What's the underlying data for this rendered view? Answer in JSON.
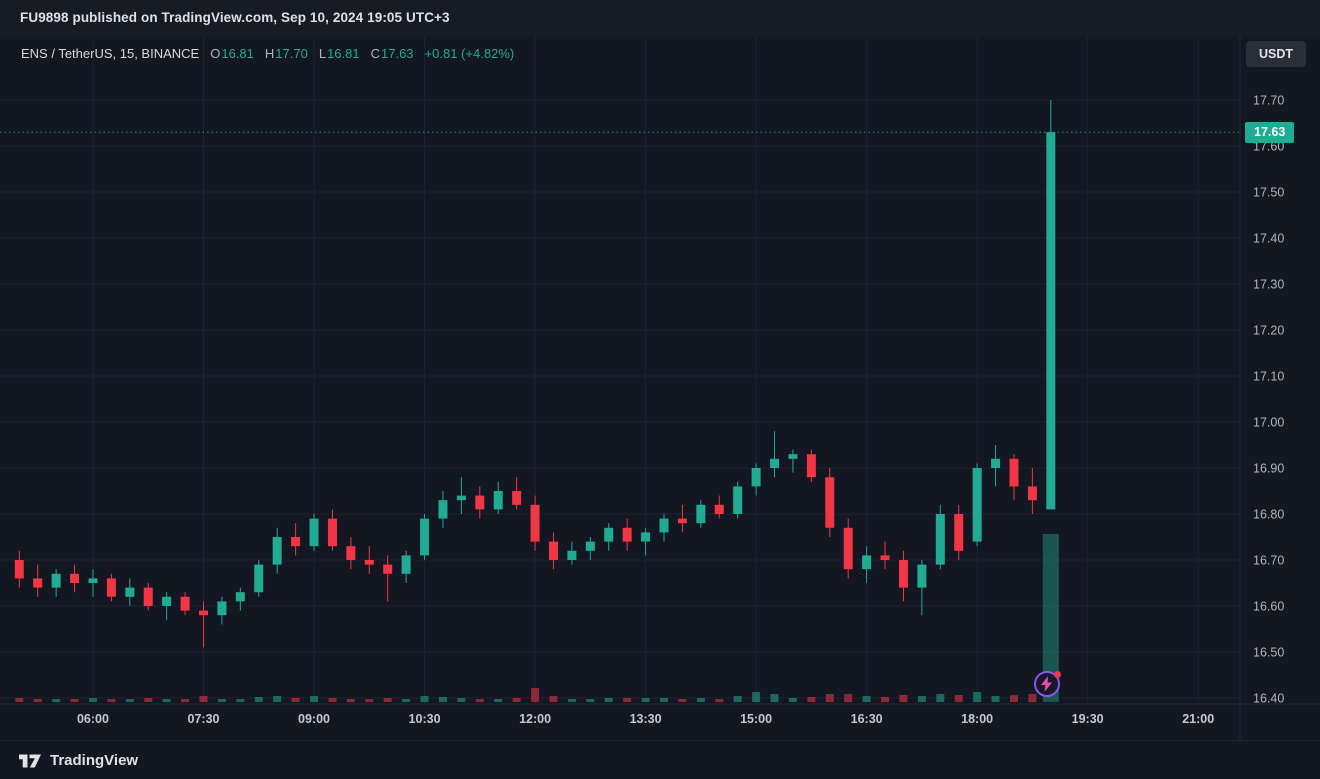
{
  "header": {
    "attribution": "FU9898 published on TradingView.com, Sep 10, 2024 19:05 UTC+3"
  },
  "toolbar": {
    "currency_label": "USDT"
  },
  "legend": {
    "symbol": "ENS / TetherUS, 15, BINANCE",
    "ohlc": [
      {
        "k": "O",
        "v": "16.81"
      },
      {
        "k": "H",
        "v": "17.70"
      },
      {
        "k": "L",
        "v": "16.81"
      },
      {
        "k": "C",
        "v": "17.63"
      }
    ],
    "change": "+0.81 (+4.82%)"
  },
  "price_label": {
    "value": "17.63"
  },
  "footer": {
    "brand": "TradingView"
  },
  "colors": {
    "up": "#22ab94",
    "down": "#f23645",
    "bg": "#131722",
    "grid": "#1d2230",
    "axis_text": "#b2b5be",
    "time_text": "#c6c9d1",
    "separator": "#242836"
  },
  "chart_data": {
    "type": "candlestick",
    "symbol": "ENS / TetherUS",
    "exchange": "BINANCE",
    "interval_minutes": 15,
    "last": {
      "o": 16.81,
      "h": 17.7,
      "l": 16.81,
      "c": 17.63,
      "change_abs": 0.81,
      "change_pct": 4.82
    },
    "ylim": [
      16.38,
      17.84
    ],
    "y_ticks": [
      "16.40",
      "16.50",
      "16.60",
      "16.70",
      "16.80",
      "16.90",
      "17.00",
      "17.10",
      "17.20",
      "17.30",
      "17.40",
      "17.50",
      "17.60",
      "17.70"
    ],
    "x_ticks": [
      {
        "label": "06:00",
        "i": 4
      },
      {
        "label": "07:30",
        "i": 10
      },
      {
        "label": "09:00",
        "i": 16
      },
      {
        "label": "10:30",
        "i": 22
      },
      {
        "label": "12:00",
        "i": 28
      },
      {
        "label": "13:30",
        "i": 34
      },
      {
        "label": "15:00",
        "i": 40
      },
      {
        "label": "16:30",
        "i": 46
      },
      {
        "label": "18:00",
        "i": 52
      },
      {
        "label": "19:30",
        "i": 58
      },
      {
        "label": "21:00",
        "i": 64
      }
    ],
    "candles_format": [
      "time",
      "open",
      "high",
      "low",
      "close",
      "relative_volume"
    ],
    "candles": [
      [
        "05:00",
        16.7,
        16.72,
        16.64,
        16.66,
        4
      ],
      [
        "05:15",
        16.66,
        16.69,
        16.62,
        16.64,
        3
      ],
      [
        "05:30",
        16.64,
        16.68,
        16.62,
        16.67,
        3
      ],
      [
        "05:45",
        16.67,
        16.69,
        16.63,
        16.65,
        3
      ],
      [
        "06:00",
        16.65,
        16.68,
        16.62,
        16.66,
        4
      ],
      [
        "06:15",
        16.66,
        16.67,
        16.61,
        16.62,
        3
      ],
      [
        "06:30",
        16.62,
        16.66,
        16.6,
        16.64,
        3
      ],
      [
        "06:45",
        16.64,
        16.65,
        16.59,
        16.6,
        4
      ],
      [
        "07:00",
        16.6,
        16.63,
        16.57,
        16.62,
        3
      ],
      [
        "07:15",
        16.62,
        16.63,
        16.58,
        16.59,
        3
      ],
      [
        "07:30",
        16.59,
        16.61,
        16.51,
        16.58,
        6
      ],
      [
        "07:45",
        16.58,
        16.62,
        16.56,
        16.61,
        3
      ],
      [
        "08:00",
        16.61,
        16.64,
        16.59,
        16.63,
        3
      ],
      [
        "08:15",
        16.63,
        16.7,
        16.62,
        16.69,
        5
      ],
      [
        "08:30",
        16.69,
        16.77,
        16.67,
        16.75,
        6
      ],
      [
        "08:45",
        16.75,
        16.78,
        16.71,
        16.73,
        4
      ],
      [
        "09:00",
        16.73,
        16.8,
        16.72,
        16.79,
        6
      ],
      [
        "09:15",
        16.79,
        16.81,
        16.72,
        16.73,
        4
      ],
      [
        "09:30",
        16.73,
        16.75,
        16.68,
        16.7,
        3
      ],
      [
        "09:45",
        16.7,
        16.73,
        16.67,
        16.69,
        3
      ],
      [
        "10:00",
        16.69,
        16.71,
        16.61,
        16.67,
        4
      ],
      [
        "10:15",
        16.67,
        16.72,
        16.65,
        16.71,
        3
      ],
      [
        "10:30",
        16.71,
        16.8,
        16.7,
        16.79,
        6
      ],
      [
        "10:45",
        16.79,
        16.85,
        16.77,
        16.83,
        5
      ],
      [
        "11:00",
        16.83,
        16.88,
        16.8,
        16.84,
        4
      ],
      [
        "11:15",
        16.84,
        16.86,
        16.79,
        16.81,
        3
      ],
      [
        "11:30",
        16.81,
        16.87,
        16.8,
        16.85,
        3
      ],
      [
        "11:45",
        16.85,
        16.88,
        16.81,
        16.82,
        4
      ],
      [
        "12:00",
        16.82,
        16.84,
        16.72,
        16.74,
        14
      ],
      [
        "12:15",
        16.74,
        16.76,
        16.68,
        16.7,
        6
      ],
      [
        "12:30",
        16.7,
        16.74,
        16.69,
        16.72,
        3
      ],
      [
        "12:45",
        16.72,
        16.75,
        16.7,
        16.74,
        3
      ],
      [
        "13:00",
        16.74,
        16.78,
        16.72,
        16.77,
        4
      ],
      [
        "13:15",
        16.77,
        16.79,
        16.72,
        16.74,
        4
      ],
      [
        "13:30",
        16.74,
        16.77,
        16.71,
        16.76,
        4
      ],
      [
        "13:45",
        16.76,
        16.8,
        16.74,
        16.79,
        4
      ],
      [
        "14:00",
        16.79,
        16.82,
        16.76,
        16.78,
        3
      ],
      [
        "14:15",
        16.78,
        16.83,
        16.77,
        16.82,
        4
      ],
      [
        "14:30",
        16.82,
        16.84,
        16.79,
        16.8,
        3
      ],
      [
        "14:45",
        16.8,
        16.87,
        16.79,
        16.86,
        6
      ],
      [
        "15:00",
        16.86,
        16.91,
        16.84,
        16.9,
        10
      ],
      [
        "15:15",
        16.9,
        16.98,
        16.88,
        16.92,
        8
      ],
      [
        "15:30",
        16.92,
        16.94,
        16.89,
        16.93,
        4
      ],
      [
        "15:45",
        16.93,
        16.94,
        16.87,
        16.88,
        5
      ],
      [
        "16:00",
        16.88,
        16.9,
        16.75,
        16.77,
        8
      ],
      [
        "16:15",
        16.77,
        16.79,
        16.66,
        16.68,
        8
      ],
      [
        "16:30",
        16.68,
        16.73,
        16.65,
        16.71,
        6
      ],
      [
        "16:45",
        16.71,
        16.74,
        16.68,
        16.7,
        5
      ],
      [
        "17:00",
        16.7,
        16.72,
        16.61,
        16.64,
        7
      ],
      [
        "17:15",
        16.64,
        16.7,
        16.58,
        16.69,
        6
      ],
      [
        "17:30",
        16.69,
        16.82,
        16.68,
        16.8,
        8
      ],
      [
        "17:45",
        16.8,
        16.82,
        16.7,
        16.72,
        7
      ],
      [
        "18:00",
        16.74,
        16.91,
        16.73,
        16.9,
        10
      ],
      [
        "18:15",
        16.9,
        16.95,
        16.86,
        16.92,
        6
      ],
      [
        "18:30",
        16.92,
        16.93,
        16.83,
        16.86,
        7
      ],
      [
        "18:45",
        16.86,
        16.9,
        16.8,
        16.83,
        8
      ],
      [
        "19:00",
        16.81,
        17.7,
        16.81,
        17.63,
        168
      ]
    ],
    "marker": "lightning-badge-on-last-candle",
    "last_price_line": 17.63
  }
}
